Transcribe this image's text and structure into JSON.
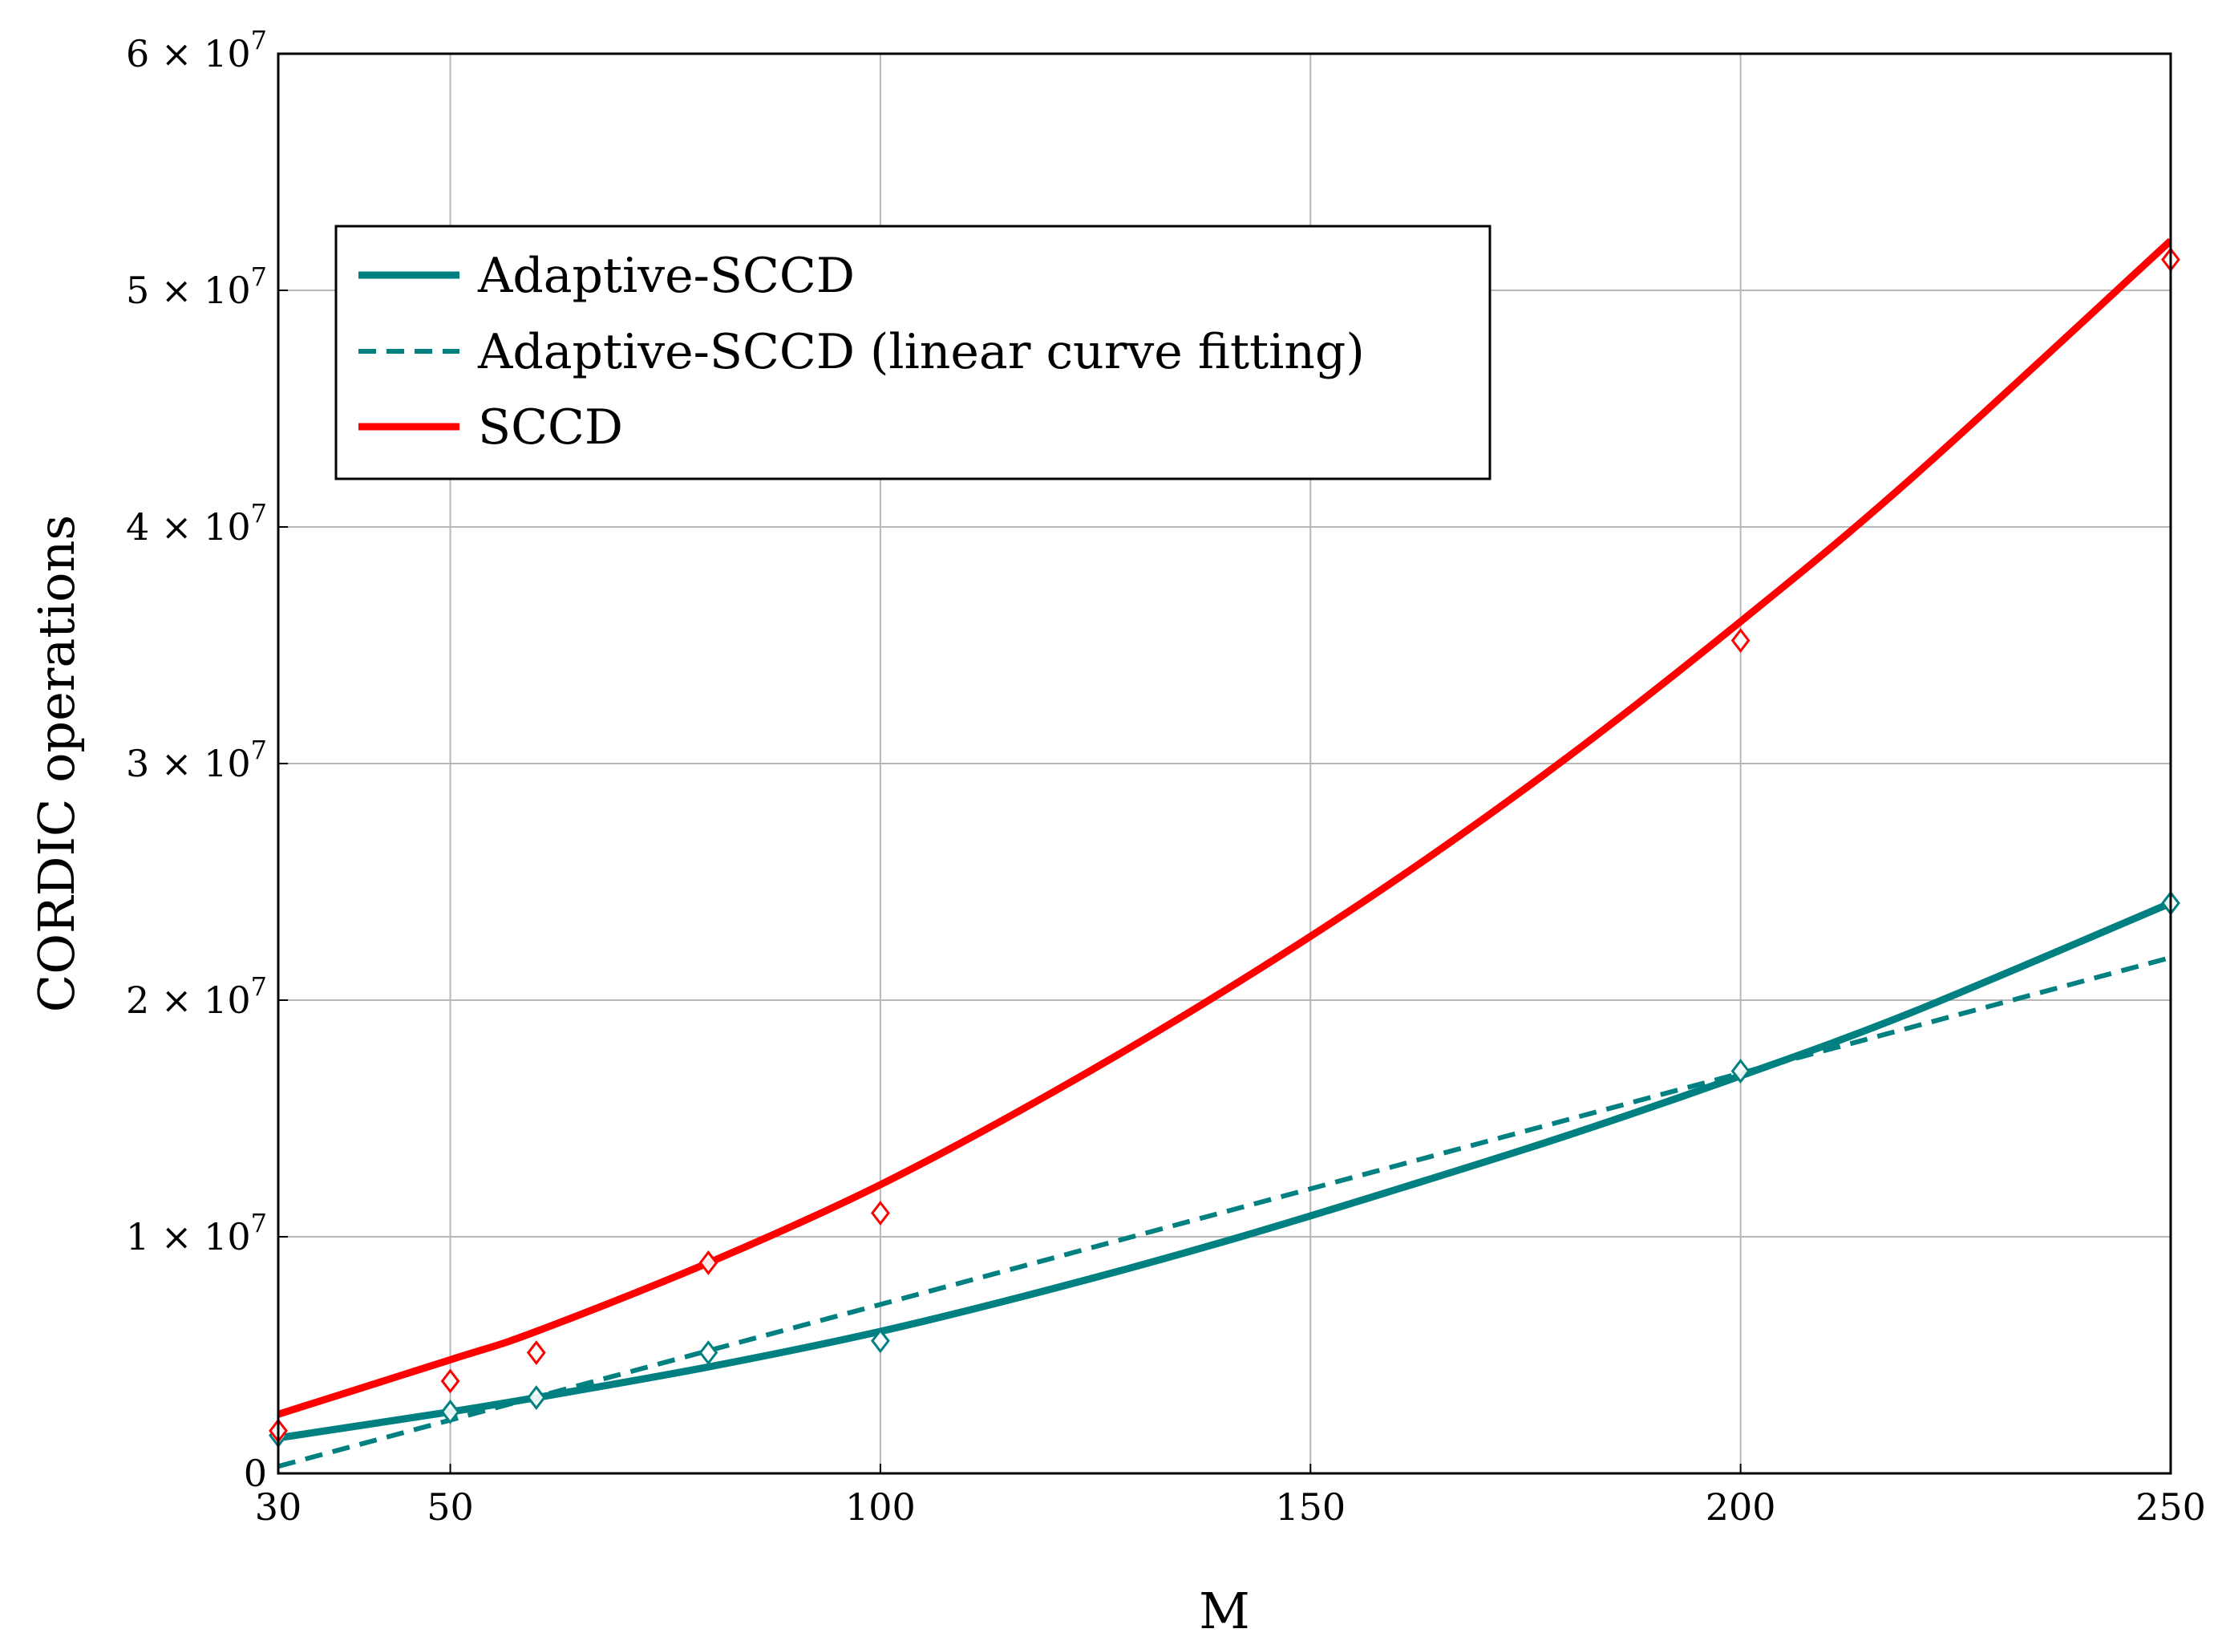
{
  "chart_data": {
    "type": "line",
    "title": "",
    "xlabel": "M",
    "ylabel": "CORDIC operations",
    "xlim": [
      30,
      250
    ],
    "ylim": [
      0,
      60000000
    ],
    "xticks": [
      {
        "value": 30,
        "label": "30"
      },
      {
        "value": 50,
        "label": "50"
      },
      {
        "value": 100,
        "label": "100"
      },
      {
        "value": 150,
        "label": "150"
      },
      {
        "value": 200,
        "label": "200"
      },
      {
        "value": 250,
        "label": "250"
      }
    ],
    "yticks": [
      {
        "value": 0,
        "mant": "0",
        "exp": ""
      },
      {
        "value": 10000000,
        "mant": "1 × 10",
        "exp": "7"
      },
      {
        "value": 20000000,
        "mant": "2 × 10",
        "exp": "7"
      },
      {
        "value": 30000000,
        "mant": "3 × 10",
        "exp": "7"
      },
      {
        "value": 40000000,
        "mant": "4 × 10",
        "exp": "7"
      },
      {
        "value": 50000000,
        "mant": "5 × 10",
        "exp": "7"
      },
      {
        "value": 60000000,
        "mant": "6 × 10",
        "exp": "7"
      }
    ],
    "grid": true,
    "legend_position": "top-left",
    "series": [
      {
        "name": "Adaptive-SCCD",
        "color": "#008080",
        "style": "solid",
        "x": [
          30,
          50,
          60,
          80,
          100,
          120,
          140,
          160,
          180,
          200,
          220,
          250
        ],
        "y": [
          1500000,
          2600000,
          3200000,
          4500000,
          6000000,
          7800000,
          9800000,
          12000000,
          14300000,
          16800000,
          19500000,
          24100000
        ]
      },
      {
        "name": "Adaptive-SCCD (linear curve fitting)",
        "color": "#008080",
        "style": "dashed",
        "x": [
          30,
          250
        ],
        "y": [
          300000,
          21800000
        ]
      },
      {
        "name": "SCCD",
        "color": "#ff0000",
        "style": "solid",
        "x": [
          30,
          50,
          60,
          80,
          100,
          120,
          140,
          160,
          180,
          200,
          220,
          250
        ],
        "y": [
          2500000,
          4800000,
          6000000,
          8900000,
          12200000,
          16100000,
          20400000,
          25100000,
          30300000,
          36000000,
          42100000,
          52100000
        ]
      }
    ],
    "markers": [
      {
        "series": "Adaptive-SCCD",
        "color": "#008080",
        "x": [
          30,
          50,
          60,
          80,
          100,
          200,
          250
        ],
        "y": [
          1600000,
          2600000,
          3200000,
          5100000,
          5600000,
          17000000,
          24100000
        ]
      },
      {
        "series": "SCCD",
        "color": "#ff0000",
        "x": [
          30,
          50,
          60,
          80,
          100,
          200,
          250
        ],
        "y": [
          1800000,
          3900000,
          5100000,
          8900000,
          11000000,
          35200000,
          51300000
        ]
      }
    ],
    "legend": [
      {
        "label": "Adaptive-SCCD",
        "color": "#008080",
        "style": "solid"
      },
      {
        "label": "Adaptive-SCCD (linear curve fitting)",
        "color": "#008080",
        "style": "dashed"
      },
      {
        "label": "SCCD",
        "color": "#ff0000",
        "style": "solid"
      }
    ]
  }
}
